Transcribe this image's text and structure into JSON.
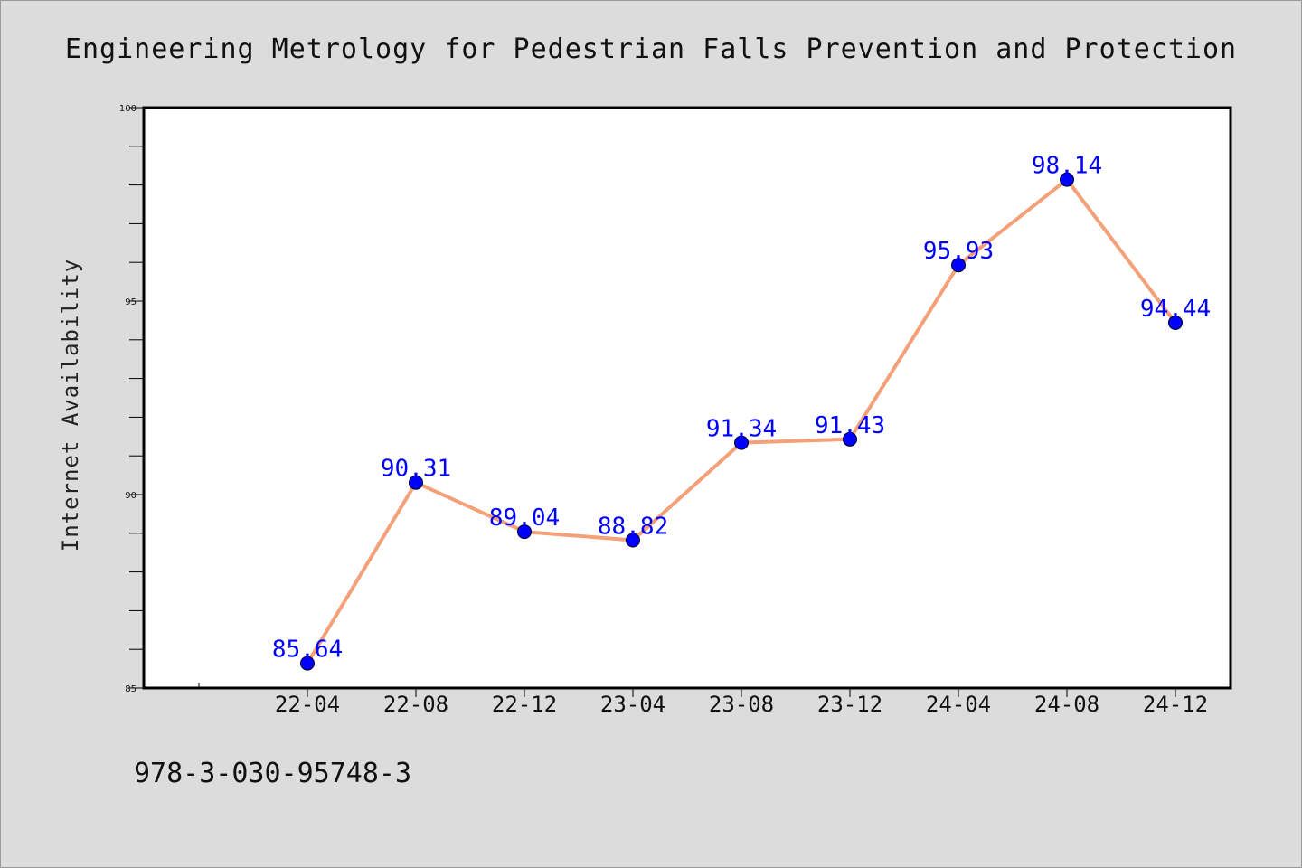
{
  "chart_data": {
    "type": "line",
    "title": "Engineering Metrology for Pedestrian Falls Prevention and Protection",
    "xlabel": "",
    "ylabel": "Internet Availability",
    "categories": [
      "22-04",
      "22-08",
      "22-12",
      "23-04",
      "23-08",
      "23-12",
      "24-04",
      "24-08",
      "24-12"
    ],
    "series": [
      {
        "values": [
          85.64,
          90.31,
          89.04,
          88.82,
          91.34,
          91.43,
          95.93,
          98.14,
          94.44
        ],
        "data_labels": [
          "85.64",
          "90.31",
          "89.04",
          "88.82",
          "91.34",
          "91.43",
          "95.93",
          "98.14",
          "94.44"
        ]
      }
    ],
    "ylim": [
      85,
      100
    ],
    "yticks": [
      85,
      90,
      95,
      100
    ],
    "ytick_labels": [
      "85",
      "90",
      "95",
      "100"
    ],
    "line_color": "#f4a078",
    "marker_color": "#0000ff",
    "label_color": "#0000ff",
    "plot_background": "#ffffff",
    "figure_background": "#dcdcdc",
    "grid": false,
    "legend": "none"
  },
  "footer": {
    "text": "978-3-030-95748-3"
  }
}
